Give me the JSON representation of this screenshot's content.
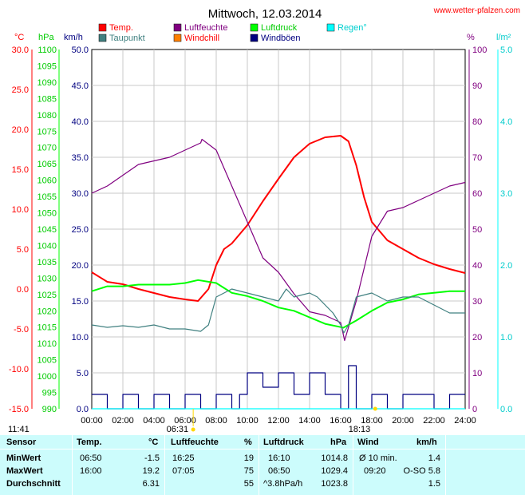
{
  "header": {
    "title": "Mittwoch, 12.03.2014",
    "site": "www.wetter-pfalzen.com"
  },
  "legend": [
    {
      "label": "Temp.",
      "color": "#ff0000",
      "text_color": "#ff0000"
    },
    {
      "label": "Luftfeuchte",
      "color": "#800080",
      "text_color": "#800080"
    },
    {
      "label": "Luftdruck",
      "color": "#00ff00",
      "text_color": "#00cc00"
    },
    {
      "label": "Regen°",
      "color": "#00ffff",
      "text_color": "#00d0d0"
    },
    {
      "label": "Taupunkt",
      "color": "#408080",
      "text_color": "#408080"
    },
    {
      "label": "Windchill",
      "color": "#ff8000",
      "text_color": "#ff0000"
    },
    {
      "label": "Windböen",
      "color": "#000080",
      "text_color": "#000080"
    }
  ],
  "axis_units": {
    "temp": "°C",
    "pressure": "hPa",
    "wind": "km/h",
    "humidity": "%",
    "rain": "l/m²"
  },
  "sun": {
    "sunrise": "06:31",
    "sunset": "18:13",
    "sunrise_hour": 6.52,
    "sunset_hour": 18.22,
    "moon": "11:41"
  },
  "chart_data": {
    "type": "line",
    "title": "Mittwoch, 12.03.2014",
    "x_ticks": [
      "00:00",
      "02:00",
      "04:00",
      "06:00",
      "08:00",
      "10:00",
      "12:00",
      "14:00",
      "16:00",
      "18:00",
      "20:00",
      "22:00",
      "24:00"
    ],
    "xlim": [
      0,
      24
    ],
    "axes": {
      "temp": {
        "unit": "°C",
        "range": [
          -15,
          30
        ],
        "ticks": [
          "30.0",
          "25.0",
          "20.0",
          "15.0",
          "10.0",
          "5.0",
          "0.0",
          "-5.0",
          "-10.0",
          "-15.0"
        ]
      },
      "pressure": {
        "unit": "hPa",
        "range": [
          990,
          1100
        ],
        "ticks": [
          "1100",
          "1095",
          "1090",
          "1085",
          "1080",
          "1075",
          "1070",
          "1065",
          "1060",
          "1055",
          "1050",
          "1045",
          "1040",
          "1035",
          "1030",
          "1025",
          "1020",
          "1015",
          "1010",
          "1005",
          "1000",
          "995",
          "990"
        ]
      },
      "wind": {
        "unit": "km/h",
        "range": [
          0,
          50
        ],
        "ticks": [
          "50.0",
          "45.0",
          "40.0",
          "35.0",
          "30.0",
          "25.0",
          "20.0",
          "15.0",
          "10.0",
          "5.0",
          "0.0"
        ]
      },
      "humidity": {
        "unit": "%",
        "range": [
          0,
          100
        ],
        "ticks": [
          "100",
          "90",
          "80",
          "70",
          "60",
          "50",
          "40",
          "30",
          "20",
          "10",
          "0"
        ]
      },
      "rain": {
        "unit": "l/m²",
        "range": [
          0,
          5
        ],
        "ticks": [
          "5.0",
          "4.0",
          "3.0",
          "2.0",
          "1.0",
          "0.0"
        ]
      }
    },
    "series": [
      {
        "name": "Temp.",
        "axis": "temp",
        "color": "#ff0000",
        "x": [
          0,
          1,
          2,
          3,
          4,
          5,
          6,
          6.83,
          7.5,
          8,
          8.5,
          9,
          10,
          11,
          12,
          13,
          14,
          15,
          16,
          16.5,
          17,
          17.5,
          18,
          19,
          20,
          21,
          22,
          23,
          24
        ],
        "y": [
          2.1,
          0.9,
          0.6,
          0,
          -0.5,
          -1,
          -1.3,
          -1.5,
          0,
          3,
          5,
          5.7,
          8,
          11,
          13.8,
          16.5,
          18.2,
          19,
          19.2,
          18.5,
          15.5,
          11.5,
          8.4,
          6.1,
          5,
          3.9,
          3.1,
          2.5,
          2
        ]
      },
      {
        "name": "Luftfeuchte",
        "axis": "humidity",
        "color": "#800080",
        "x": [
          0,
          1,
          2,
          3,
          4,
          5,
          6,
          7,
          7.08,
          8,
          9,
          10,
          11,
          12,
          13,
          14,
          15,
          16,
          16.25,
          17,
          18,
          19,
          20,
          21,
          22,
          23,
          24
        ],
        "y": [
          60,
          62,
          65,
          68,
          69,
          70,
          72,
          74,
          75,
          72,
          62,
          52,
          42,
          38,
          32,
          27,
          26,
          24,
          19,
          30,
          48,
          55,
          56,
          58,
          60,
          62,
          63
        ]
      },
      {
        "name": "Luftdruck",
        "axis": "pressure",
        "color": "#00ff00",
        "x": [
          0,
          1,
          2,
          3,
          4,
          5,
          6,
          6.83,
          8,
          9,
          10,
          11,
          12,
          13,
          14,
          15,
          16,
          16.17,
          17,
          18,
          19,
          20,
          21,
          22,
          23,
          24
        ],
        "y": [
          1026,
          1027.5,
          1027.5,
          1028,
          1028,
          1028,
          1028.5,
          1029.4,
          1028.5,
          1025.5,
          1024.5,
          1023,
          1021,
          1020,
          1018,
          1016,
          1015,
          1014.8,
          1017,
          1020,
          1022.5,
          1023.5,
          1025,
          1025.5,
          1026,
          1026
        ]
      },
      {
        "name": "Taupunkt",
        "axis": "temp",
        "color": "#408080",
        "x": [
          0,
          1,
          2,
          3,
          4,
          5,
          6,
          7,
          7.5,
          8,
          9,
          10,
          11,
          12,
          12.5,
          13,
          14,
          14.5,
          15,
          15.5,
          16,
          16.2,
          16.5,
          17,
          18,
          19,
          20,
          21,
          22,
          23,
          24
        ],
        "y": [
          -4.5,
          -4.8,
          -4.6,
          -4.8,
          -4.5,
          -5,
          -5,
          -5.3,
          -4.5,
          -1,
          0,
          -0.5,
          -1,
          -1.5,
          0,
          -1,
          -0.5,
          -1,
          -2,
          -3,
          -4.5,
          -5.5,
          -4.5,
          -1,
          -0.5,
          -1.5,
          -1,
          -1,
          -2,
          -3,
          -3
        ]
      },
      {
        "name": "Windböen",
        "axis": "wind",
        "color": "#000080",
        "x": [
          0,
          1,
          2,
          3,
          4,
          5,
          6,
          7,
          8,
          9,
          9.5,
          10,
          11,
          12,
          13,
          14,
          15,
          16,
          16.5,
          17,
          18,
          19,
          20,
          21,
          22,
          23,
          24
        ],
        "y": [
          2,
          0,
          2,
          0,
          2,
          0,
          2,
          0,
          2,
          0,
          2,
          5,
          3,
          5,
          2,
          5,
          2,
          0,
          6,
          0,
          2,
          0,
          2,
          2,
          0,
          2,
          2
        ]
      },
      {
        "name": "Regen°",
        "axis": "rain",
        "color": "#00ffff",
        "x": [
          0,
          24
        ],
        "y": [
          0,
          0
        ]
      }
    ]
  },
  "table": {
    "headers": {
      "sensor": "Sensor",
      "temp": "Temp.",
      "temp_unit": "°C",
      "humidity": "Luftfeuchte",
      "humidity_unit": "%",
      "pressure": "Luftdruck",
      "pressure_unit": "hPa",
      "wind": "Wind",
      "wind_unit": "km/h"
    },
    "rows": [
      {
        "label": "MinWert",
        "temp_time": "06:50",
        "temp": "-1.5",
        "hum_time": "16:25",
        "hum": "19",
        "press_time": "16:10",
        "press": "1014.8",
        "wind_time": "Ø 10 min.",
        "wind": "1.4"
      },
      {
        "label": "MaxWert",
        "temp_time": "16:00",
        "temp": "19.2",
        "hum_time": "07:05",
        "hum": "75",
        "press_time": "06:50",
        "press": "1029.4",
        "wind_time": "09:20",
        "wind": "O-SO 5.8"
      },
      {
        "label": "Durchschnitt",
        "temp_time": "",
        "temp": "6.31",
        "hum_time": "",
        "hum": "55",
        "press_time": "^3.8hPa/h",
        "press": "1023.8",
        "wind_time": "",
        "wind": "1.5"
      }
    ]
  }
}
